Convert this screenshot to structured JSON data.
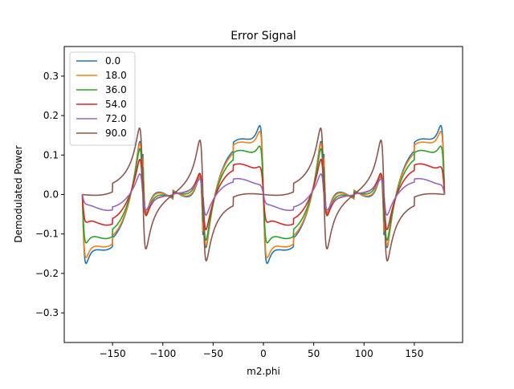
{
  "chart_data": {
    "type": "line",
    "title": "Error Signal",
    "xlabel": "m2.phi",
    "ylabel": "Demodulated Power",
    "xlim": [
      -198,
      198
    ],
    "ylim": [
      -0.375,
      0.375
    ],
    "xticks": [
      -150,
      -100,
      -50,
      0,
      50,
      100,
      150
    ],
    "xtick_labels": [
      "−150",
      "−100",
      "−50",
      "0",
      "50",
      "100",
      "150"
    ],
    "yticks": [
      -0.3,
      -0.2,
      -0.1,
      0.0,
      0.1,
      0.2,
      0.3
    ],
    "ytick_labels": [
      "−0.3",
      "−0.2",
      "−0.1",
      "0.0",
      "0.1",
      "0.2",
      "0.3"
    ],
    "grid": false,
    "legend_position": "top-left",
    "x_domain": [
      -180,
      180
    ],
    "series": [
      {
        "name": "0.0",
        "color": "#1f77b4",
        "amplitude": 0.35,
        "beta": 0.0
      },
      {
        "name": "18.0",
        "color": "#ff7f0e",
        "amplitude": 0.335,
        "beta": 0.309
      },
      {
        "name": "36.0",
        "color": "#2ca02c",
        "amplitude": 0.295,
        "beta": 0.588
      },
      {
        "name": "54.0",
        "color": "#d62728",
        "amplitude": 0.22,
        "beta": 0.809
      },
      {
        "name": "72.0",
        "color": "#9467bd",
        "amplitude": 0.125,
        "beta": 0.951
      },
      {
        "name": "90.0",
        "color": "#8c564b",
        "amplitude": 0.015,
        "beta": 1.0
      }
    ]
  }
}
